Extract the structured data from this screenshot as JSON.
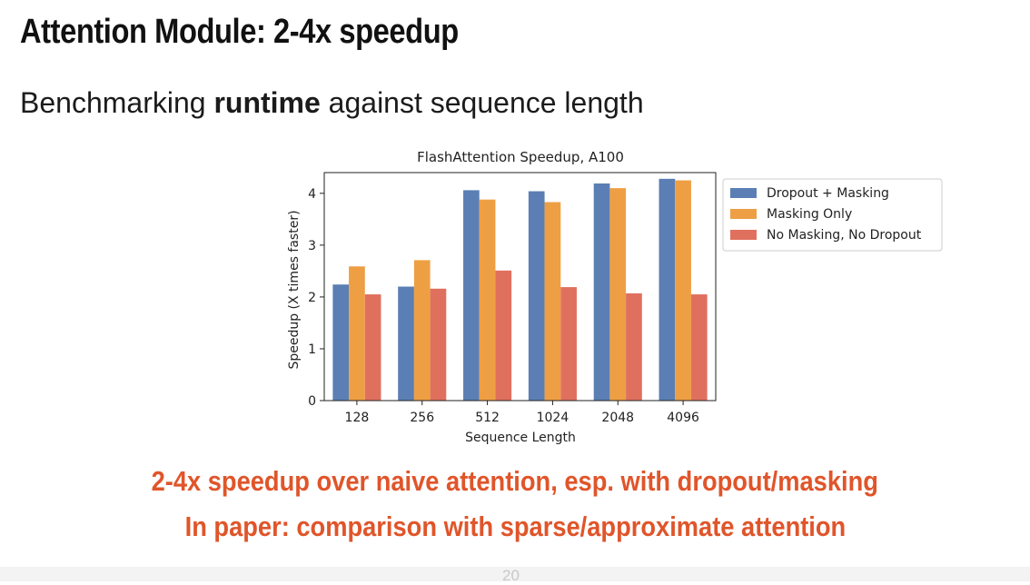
{
  "slide": {
    "title": "Attention Module: 2-4x speedup",
    "subtitle_pre": "Benchmarking ",
    "subtitle_bold": "runtime",
    "subtitle_post": " against sequence length",
    "takeaway_1": "2-4x speedup over naive attention, esp. with dropout/masking",
    "takeaway_2": "In paper: comparison with sparse/approximate attention",
    "page_number": "20",
    "accent_color": "#e0552a"
  },
  "chart_data": {
    "type": "bar",
    "title": "FlashAttention Speedup, A100",
    "xlabel": "Sequence Length",
    "ylabel": "Speedup (X times faster)",
    "categories": [
      "128",
      "256",
      "512",
      "1024",
      "2048",
      "4096"
    ],
    "ylim": [
      0,
      4.4
    ],
    "yticks": [
      0,
      1,
      2,
      3,
      4
    ],
    "grid": false,
    "legend_position": "outside-right",
    "series": [
      {
        "name": "Dropout + Masking",
        "color": "#5b7fb4",
        "values": [
          2.24,
          2.2,
          4.06,
          4.04,
          4.19,
          4.28
        ]
      },
      {
        "name": "Masking Only",
        "color": "#ee9f44",
        "values": [
          2.59,
          2.71,
          3.88,
          3.83,
          4.1,
          4.25
        ]
      },
      {
        "name": "No Masking, No Dropout",
        "color": "#e0705e",
        "values": [
          2.05,
          2.16,
          2.51,
          2.19,
          2.07,
          2.05
        ]
      }
    ]
  }
}
